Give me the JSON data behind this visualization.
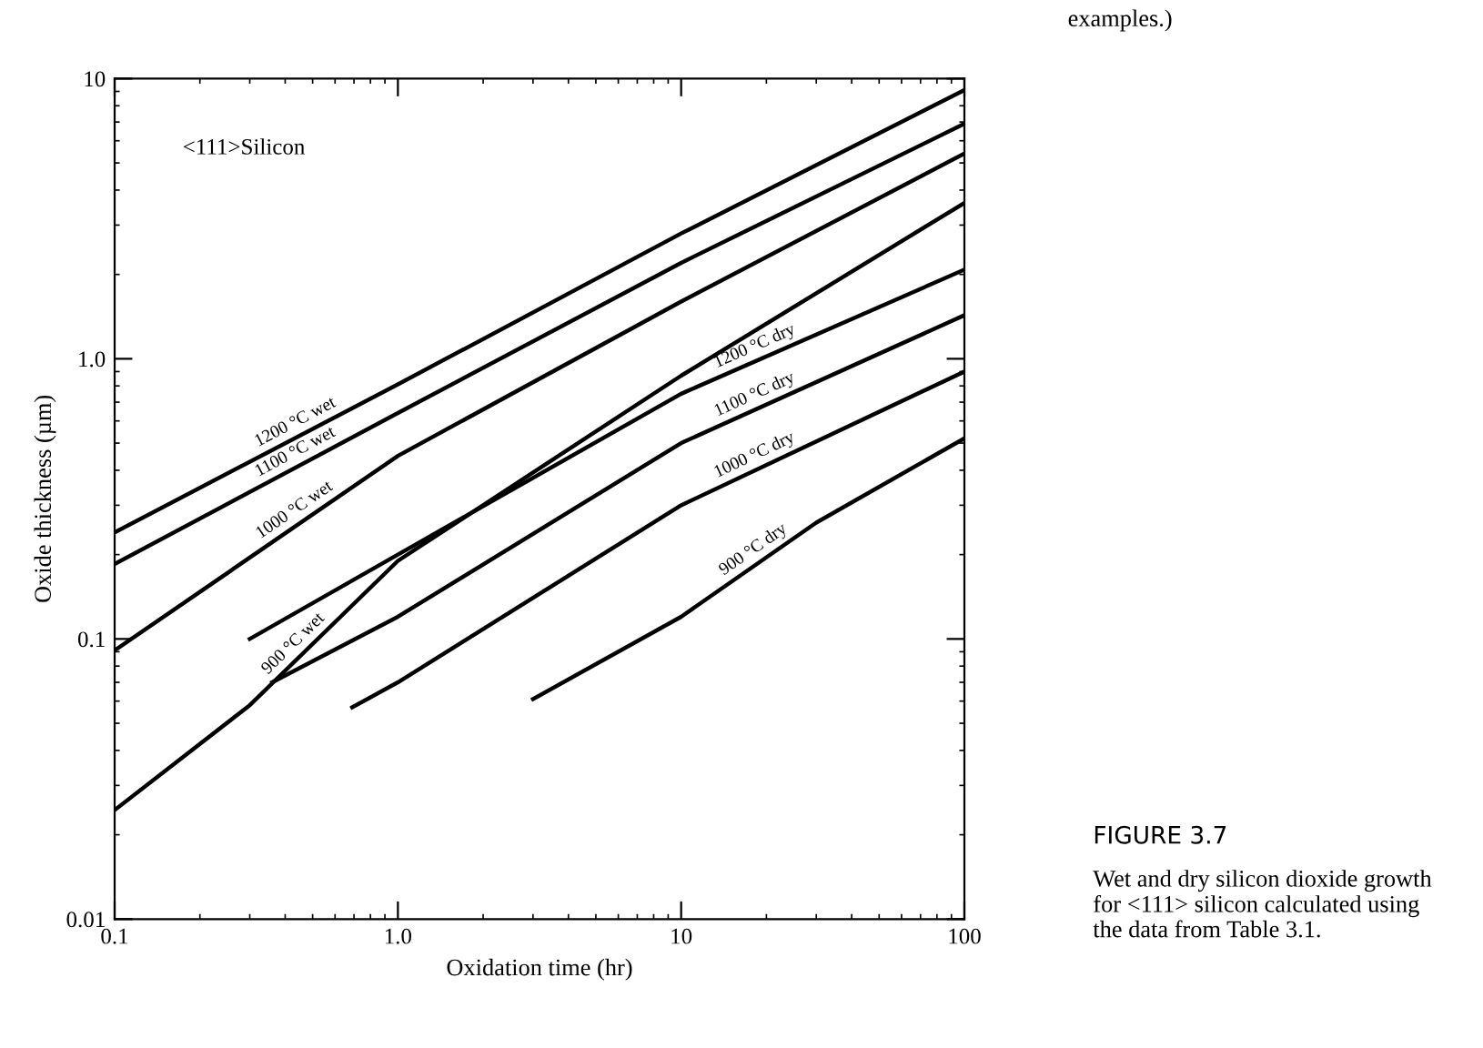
{
  "chart_data": {
    "type": "line",
    "xlabel": "Oxidation time (hr)",
    "ylabel": "Oxide thickness (µm)",
    "log": "xy",
    "xlim": [
      0.1,
      100
    ],
    "ylim": [
      0.01,
      10
    ],
    "xticks": [
      0.1,
      {
        "value": 1,
        "label": "1.0"
      },
      10,
      100
    ],
    "yticks": [
      0.01,
      0.1,
      {
        "value": 1,
        "label": "1.0"
      },
      10
    ],
    "grid": false,
    "legend": false,
    "marker": "none",
    "line_style": "solid",
    "series": [
      {
        "name": "1200 °C wet",
        "color": "#000000",
        "x": [
          0.1,
          1,
          10,
          100
        ],
        "values": [
          0.24,
          0.81,
          2.8,
          9.1
        ]
      },
      {
        "name": "1100 °C wet",
        "color": "#000000",
        "x": [
          0.1,
          1,
          10,
          100
        ],
        "values": [
          0.185,
          0.64,
          2.2,
          6.9
        ]
      },
      {
        "name": "1000 °C wet",
        "color": "#000000",
        "x": [
          0.1,
          1,
          10,
          100
        ],
        "values": [
          0.091,
          0.45,
          1.6,
          5.4
        ]
      },
      {
        "name": "900 °C wet",
        "color": "#000000",
        "x": [
          0.1,
          0.3,
          1,
          10,
          100
        ],
        "values": [
          0.0245,
          0.058,
          0.19,
          0.87,
          3.6
        ]
      },
      {
        "name": "1200 °C dry",
        "color": "#000000",
        "x": [
          0.3,
          1,
          10,
          100
        ],
        "values": [
          0.1,
          0.2,
          0.75,
          2.08
        ]
      },
      {
        "name": "1100 °C dry",
        "color": "#000000",
        "x": [
          0.36,
          1,
          10,
          100
        ],
        "values": [
          0.07,
          0.12,
          0.5,
          1.43
        ]
      },
      {
        "name": "1000 °C dry",
        "color": "#000000",
        "x": [
          0.69,
          1,
          10,
          100
        ],
        "values": [
          0.057,
          0.07,
          0.3,
          0.9
        ]
      },
      {
        "name": "900 °C dry",
        "color": "#000000",
        "x": [
          3,
          10,
          30,
          100
        ],
        "values": [
          0.061,
          0.12,
          0.26,
          0.52
        ]
      }
    ],
    "annotations": [
      "<111>Silicon",
      "examples.)",
      "FIGURE 3.7",
      "Wet and dry silicon dioxide growth for <111> silicon calculated using the data from Table 3.1."
    ]
  }
}
